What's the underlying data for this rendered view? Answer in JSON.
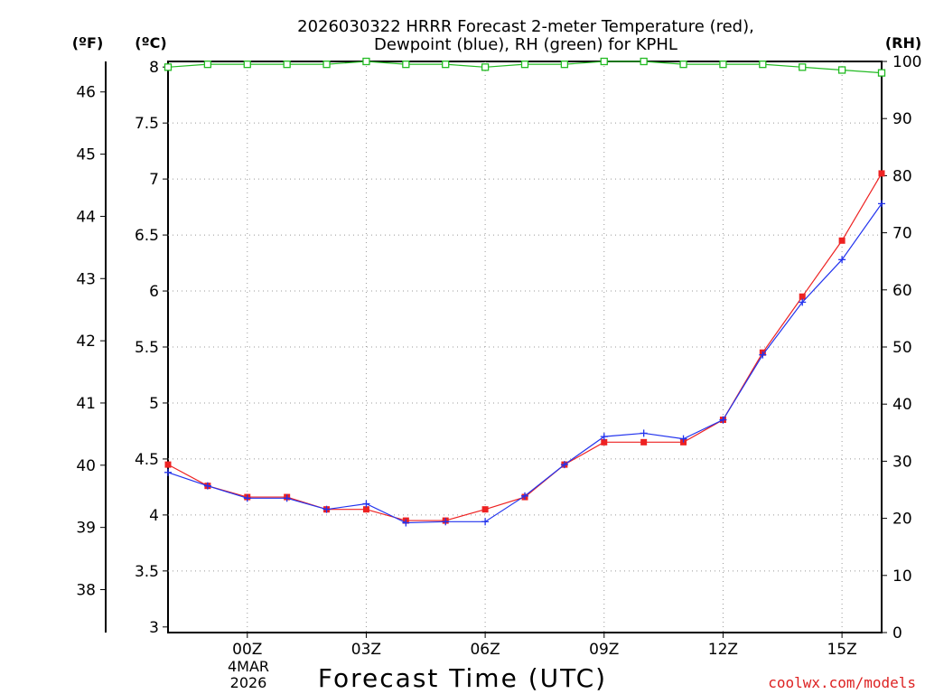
{
  "chart_data": {
    "type": "line",
    "title_line1": "2026030322 HRRR Forecast 2-meter Temperature (red),",
    "title_line2": "Dewpoint (blue), RH (green) for KPHL",
    "xlabel": "Forecast Time (UTC)",
    "left_unit_f": "(ºF)",
    "left_unit_c": "(ºC)",
    "right_unit": "(RH)",
    "watermark": "coolwx.com/models",
    "date_label": [
      "4MAR",
      "2026"
    ],
    "x": [
      -2,
      -1,
      0,
      1,
      2,
      3,
      4,
      5,
      6,
      7,
      8,
      9,
      10,
      11,
      12,
      13,
      14,
      15,
      16
    ],
    "x_ticks": [
      {
        "x": 0,
        "label": "00Z"
      },
      {
        "x": 3,
        "label": "03Z"
      },
      {
        "x": 6,
        "label": "06Z"
      },
      {
        "x": 9,
        "label": "09Z"
      },
      {
        "x": 12,
        "label": "12Z"
      },
      {
        "x": 15,
        "label": "15Z"
      }
    ],
    "xlim": [
      -2,
      16
    ],
    "celsius_axis": {
      "ylim": [
        2.95,
        8.05
      ],
      "ticks": [
        "3",
        "3.5",
        "4",
        "4.5",
        "5",
        "5.5",
        "6",
        "6.5",
        "7",
        "7.5",
        "8"
      ]
    },
    "fahrenheit_axis": {
      "ticks": [
        "38",
        "39",
        "40",
        "41",
        "42",
        "43",
        "44",
        "45",
        "46"
      ]
    },
    "rh_axis": {
      "ylim": [
        0,
        100
      ],
      "ticks": [
        "0",
        "10",
        "20",
        "30",
        "40",
        "50",
        "60",
        "70",
        "80",
        "90",
        "100"
      ]
    },
    "series": [
      {
        "name": "Temperature",
        "unit": "C",
        "color": "#ee2222",
        "values": [
          4.45,
          4.26,
          4.16,
          4.16,
          4.05,
          4.05,
          3.95,
          3.95,
          4.05,
          4.16,
          4.45,
          4.65,
          4.65,
          4.65,
          4.85,
          5.45,
          5.95,
          6.45,
          7.05
        ]
      },
      {
        "name": "Dewpoint",
        "unit": "C",
        "color": "#2233ee",
        "values": [
          4.38,
          4.26,
          4.15,
          4.15,
          4.05,
          4.1,
          3.93,
          3.94,
          3.94,
          4.17,
          4.45,
          4.7,
          4.73,
          4.68,
          4.85,
          5.43,
          5.9,
          6.28,
          6.78
        ]
      },
      {
        "name": "RH",
        "unit": "%",
        "color": "#22bb22",
        "values": [
          99,
          99.5,
          99.5,
          99.5,
          99.5,
          100,
          99.5,
          99.5,
          99,
          99.5,
          99.5,
          100,
          100,
          99.5,
          99.5,
          99.5,
          99,
          98.5,
          98
        ]
      }
    ]
  }
}
